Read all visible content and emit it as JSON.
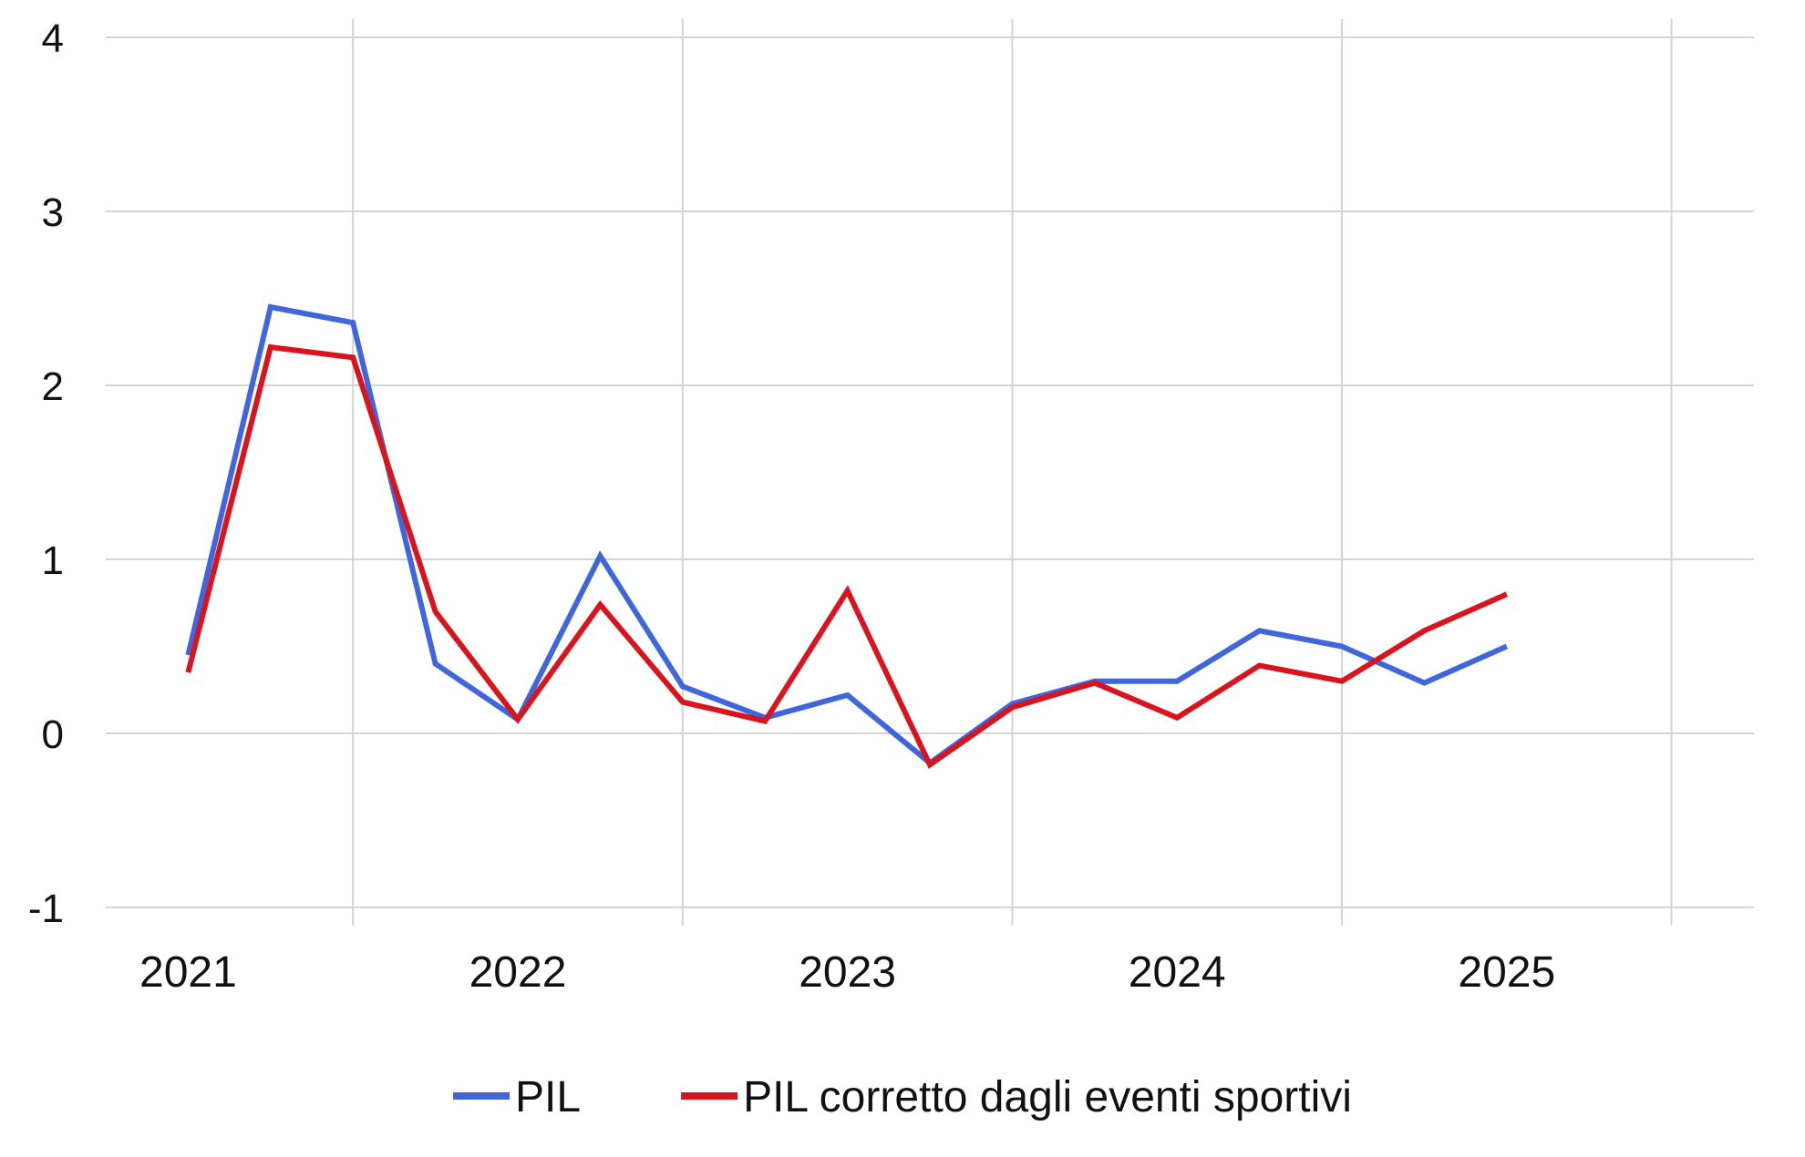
{
  "chart_data": {
    "type": "line",
    "title": "",
    "xlabel": "",
    "ylabel": "",
    "x_ticks": [
      "2021",
      "2022",
      "2023",
      "2024",
      "2025"
    ],
    "x_range": [
      "2020-Q2",
      "2025-Q2"
    ],
    "x": [
      "2020-Q3",
      "2020-Q4",
      "2021-Q1",
      "2021-Q2",
      "2021-Q3",
      "2021-Q4",
      "2022-Q1",
      "2022-Q2",
      "2022-Q3",
      "2022-Q4",
      "2023-Q1",
      "2023-Q2",
      "2023-Q3",
      "2023-Q4",
      "2024-Q1",
      "2024-Q2",
      "2024-Q3"
    ],
    "ylim": [
      -1,
      4
    ],
    "y_ticks": [
      "-1",
      "0",
      "1",
      "2",
      "3",
      "4"
    ],
    "grid": true,
    "legend": {
      "position": "bottom"
    },
    "series": [
      {
        "name": "PIL",
        "color": "#3f66dc",
        "values": [
          0.45,
          2.45,
          2.36,
          0.4,
          0.08,
          1.02,
          0.27,
          0.09,
          0.22,
          -0.17,
          0.17,
          0.3,
          0.3,
          0.59,
          0.5,
          0.29,
          0.5
        ]
      },
      {
        "name": "PIL corretto dagli eventi sportivi",
        "color": "#d9141c",
        "values": [
          0.35,
          2.22,
          2.16,
          0.7,
          0.08,
          0.74,
          0.18,
          0.07,
          0.82,
          -0.18,
          0.15,
          0.29,
          0.09,
          0.39,
          0.3,
          0.59,
          0.8
        ]
      }
    ]
  }
}
